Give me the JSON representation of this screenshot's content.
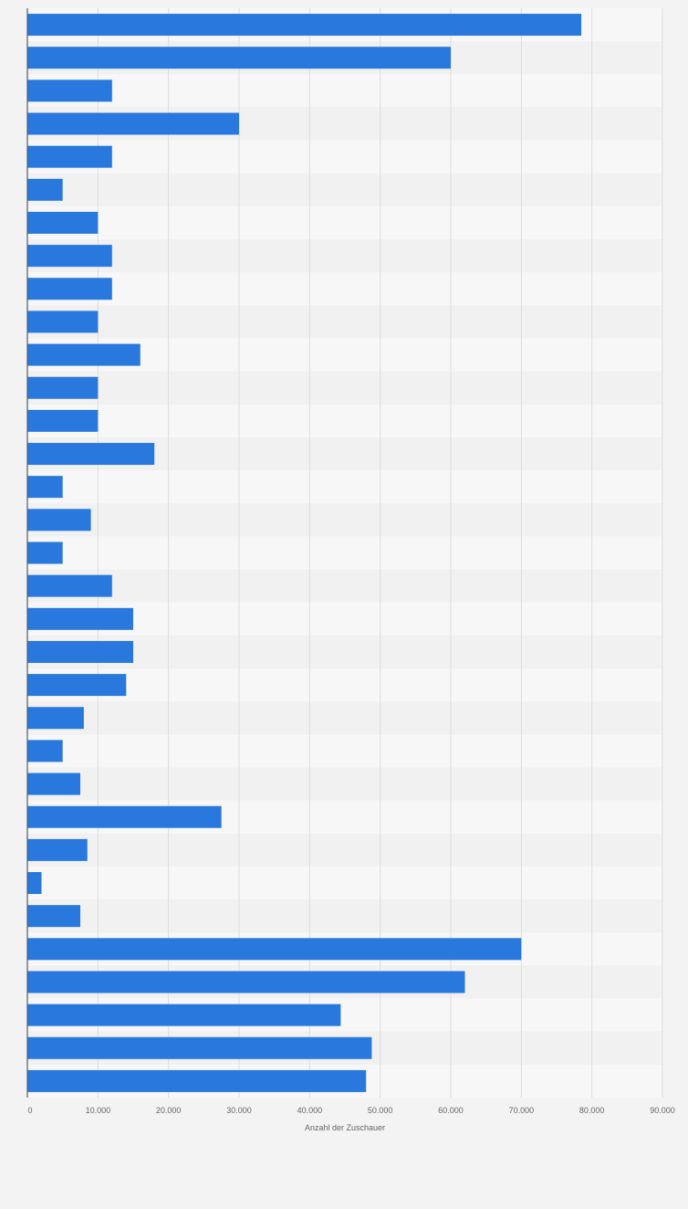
{
  "chart_data": {
    "type": "bar",
    "orientation": "horizontal",
    "title": "",
    "xlabel": "Anzahl der Zuschauer",
    "ylabel": "",
    "xlim": [
      0,
      90000
    ],
    "x_ticks": [
      "0",
      "10.000",
      "20.000",
      "30.000",
      "40.000",
      "50.000",
      "60.000",
      "70.000",
      "80.000",
      "90.000"
    ],
    "grid": true,
    "category_labels_visible": false,
    "values": [
      78500,
      60000,
      12000,
      30000,
      12000,
      5000,
      10000,
      12000,
      12000,
      10000,
      16000,
      10000,
      10000,
      18000,
      5000,
      9000,
      5000,
      12000,
      15000,
      15000,
      14000,
      8000,
      5000,
      7500,
      27500,
      8500,
      2000,
      7500,
      70000,
      62000,
      44400,
      48800,
      48000
    ]
  },
  "colors": {
    "bar": "#2878de",
    "background": "#f3f3f3",
    "row_band_light": "#f7f7f7",
    "row_band_dark": "#f1f1f1",
    "grid": "#dddddd",
    "axis": "#4f5b70",
    "tick_text": "#666666"
  }
}
